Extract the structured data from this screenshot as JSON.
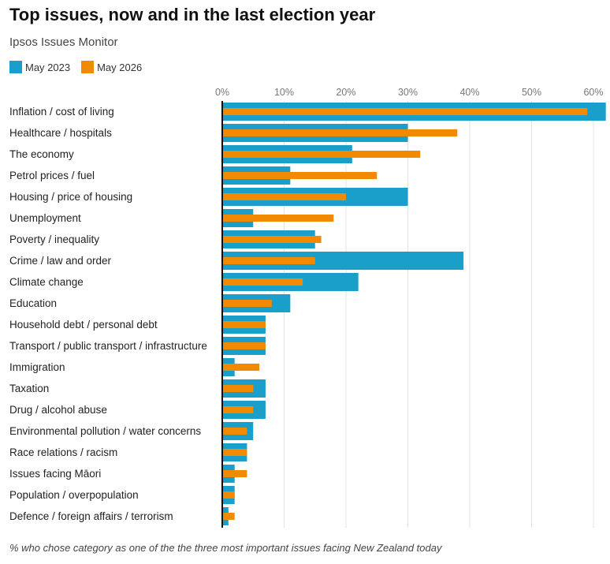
{
  "header": {
    "title": "Top issues, now and in the last election year",
    "subtitle": "Ipsos Issues Monitor"
  },
  "footnote": "% who chose category as one of the the three most important issues facing New Zealand today",
  "colors": {
    "may2023": "#1a9fcb",
    "may2026": "#f28a00",
    "grid": "#e3e3e3",
    "axis": "#111111"
  },
  "chart_data": {
    "type": "bar",
    "orientation": "horizontal",
    "title": "Top issues, now and in the last election year",
    "subtitle": "Ipsos Issues Monitor",
    "xlim": [
      0,
      62
    ],
    "ticks": [
      0,
      10,
      20,
      30,
      40,
      50,
      60
    ],
    "tick_labels": [
      "0%",
      "10%",
      "20%",
      "30%",
      "40%",
      "50%",
      "60%"
    ],
    "grid": true,
    "legend": "top-left",
    "categories": [
      "Inflation / cost of living",
      "Healthcare / hospitals",
      "The economy",
      "Petrol prices / fuel",
      "Housing / price of housing",
      "Unemployment",
      "Poverty / inequality",
      "Crime / law and order",
      "Climate change",
      "Education",
      "Household debt / personal debt",
      "Transport / public transport / infrastructure",
      "Immigration",
      "Taxation",
      "Drug / alcohol abuse",
      "Environmental pollution / water concerns",
      "Race relations / racism",
      "Issues facing Māori",
      "Population / overpopulation",
      "Defence / foreign affairs / terrorism"
    ],
    "series": [
      {
        "name": "May 2023",
        "values": [
          62,
          30,
          21,
          11,
          30,
          5,
          15,
          39,
          22,
          11,
          7,
          7,
          2,
          7,
          7,
          5,
          4,
          2,
          2,
          1
        ]
      },
      {
        "name": "May 2026",
        "values": [
          59,
          38,
          32,
          25,
          20,
          18,
          16,
          15,
          13,
          8,
          7,
          7,
          6,
          5,
          5,
          4,
          4,
          4,
          2,
          2
        ]
      }
    ]
  }
}
